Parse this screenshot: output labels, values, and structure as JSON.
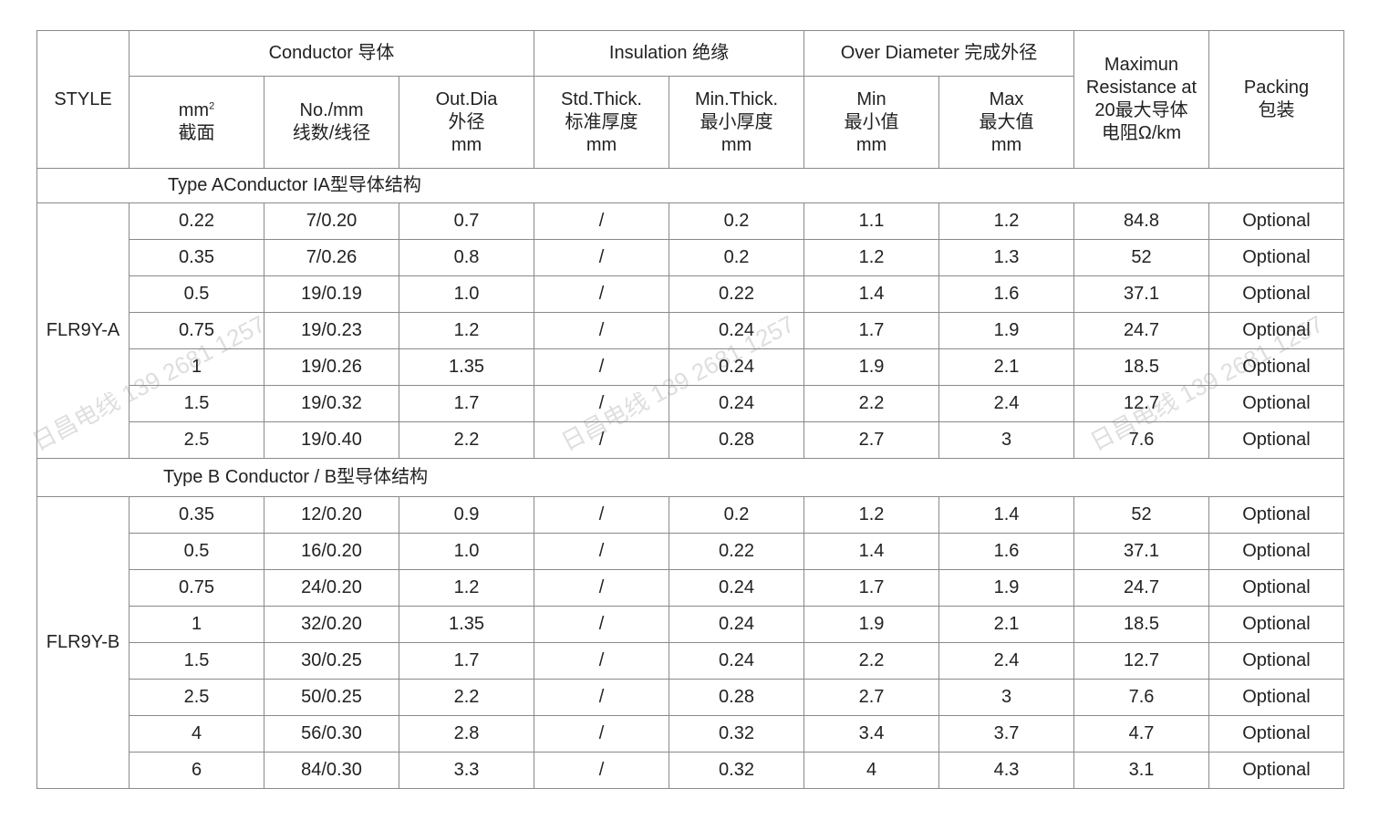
{
  "watermark": "日昌电线 139 2681 1257",
  "header": {
    "style": "STYLE",
    "conductor": "Conductor 导体",
    "insulation": "Insulation 绝缘",
    "over_diameter": "Over Diameter 完成外径",
    "resistance": [
      "Maximun",
      "Resistance at",
      "20最大导体",
      "电阻Ω/km"
    ],
    "packing": [
      "Packing",
      "包装"
    ],
    "sub": {
      "section": [
        "mm",
        "截面"
      ],
      "strands": [
        "No./mm",
        "线数/线径"
      ],
      "out_dia": [
        "Out.Dia",
        "外径",
        "mm"
      ],
      "std_thick": [
        "Std.Thick.",
        "标准厚度",
        "mm"
      ],
      "min_thick": [
        "Min.Thick.",
        "最小厚度",
        "mm"
      ],
      "od_min": [
        "Min",
        "最小值",
        "mm"
      ],
      "od_max": [
        "Max",
        "最大值",
        "mm"
      ]
    }
  },
  "groups": [
    {
      "title": "Type AConductor IA型导体结构",
      "style": "FLR9Y-A",
      "rows": [
        [
          "0.22",
          "7/0.20",
          "0.7",
          "/",
          "0.2",
          "1.1",
          "1.2",
          "84.8",
          "Optional"
        ],
        [
          "0.35",
          "7/0.26",
          "0.8",
          "/",
          "0.2",
          "1.2",
          "1.3",
          "52",
          "Optional"
        ],
        [
          "0.5",
          "19/0.19",
          "1.0",
          "/",
          "0.22",
          "1.4",
          "1.6",
          "37.1",
          "Optional"
        ],
        [
          "0.75",
          "19/0.23",
          "1.2",
          "/",
          "0.24",
          "1.7",
          "1.9",
          "24.7",
          "Optional"
        ],
        [
          "1",
          "19/0.26",
          "1.35",
          "/",
          "0.24",
          "1.9",
          "2.1",
          "18.5",
          "Optional"
        ],
        [
          "1.5",
          "19/0.32",
          "1.7",
          "/",
          "0.24",
          "2.2",
          "2.4",
          "12.7",
          "Optional"
        ],
        [
          "2.5",
          "19/0.40",
          "2.2",
          "/",
          "0.28",
          "2.7",
          "3",
          "7.6",
          "Optional"
        ]
      ]
    },
    {
      "title": "Type B Conductor / B型导体结构",
      "style": "FLR9Y-B",
      "rows": [
        [
          "0.35",
          "12/0.20",
          "0.9",
          "/",
          "0.2",
          "1.2",
          "1.4",
          "52",
          "Optional"
        ],
        [
          "0.5",
          "16/0.20",
          "1.0",
          "/",
          "0.22",
          "1.4",
          "1.6",
          "37.1",
          "Optional"
        ],
        [
          "0.75",
          "24/0.20",
          "1.2",
          "/",
          "0.24",
          "1.7",
          "1.9",
          "24.7",
          "Optional"
        ],
        [
          "1",
          "32/0.20",
          "1.35",
          "/",
          "0.24",
          "1.9",
          "2.1",
          "18.5",
          "Optional"
        ],
        [
          "1.5",
          "30/0.25",
          "1.7",
          "/",
          "0.24",
          "2.2",
          "2.4",
          "12.7",
          "Optional"
        ],
        [
          "2.5",
          "50/0.25",
          "2.2",
          "/",
          "0.28",
          "2.7",
          "3",
          "7.6",
          "Optional"
        ],
        [
          "4",
          "56/0.30",
          "2.8",
          "/",
          "0.32",
          "3.4",
          "3.7",
          "4.7",
          "Optional"
        ],
        [
          "6",
          "84/0.30",
          "3.3",
          "/",
          "0.32",
          "4",
          "4.3",
          "3.1",
          "Optional"
        ]
      ]
    }
  ]
}
